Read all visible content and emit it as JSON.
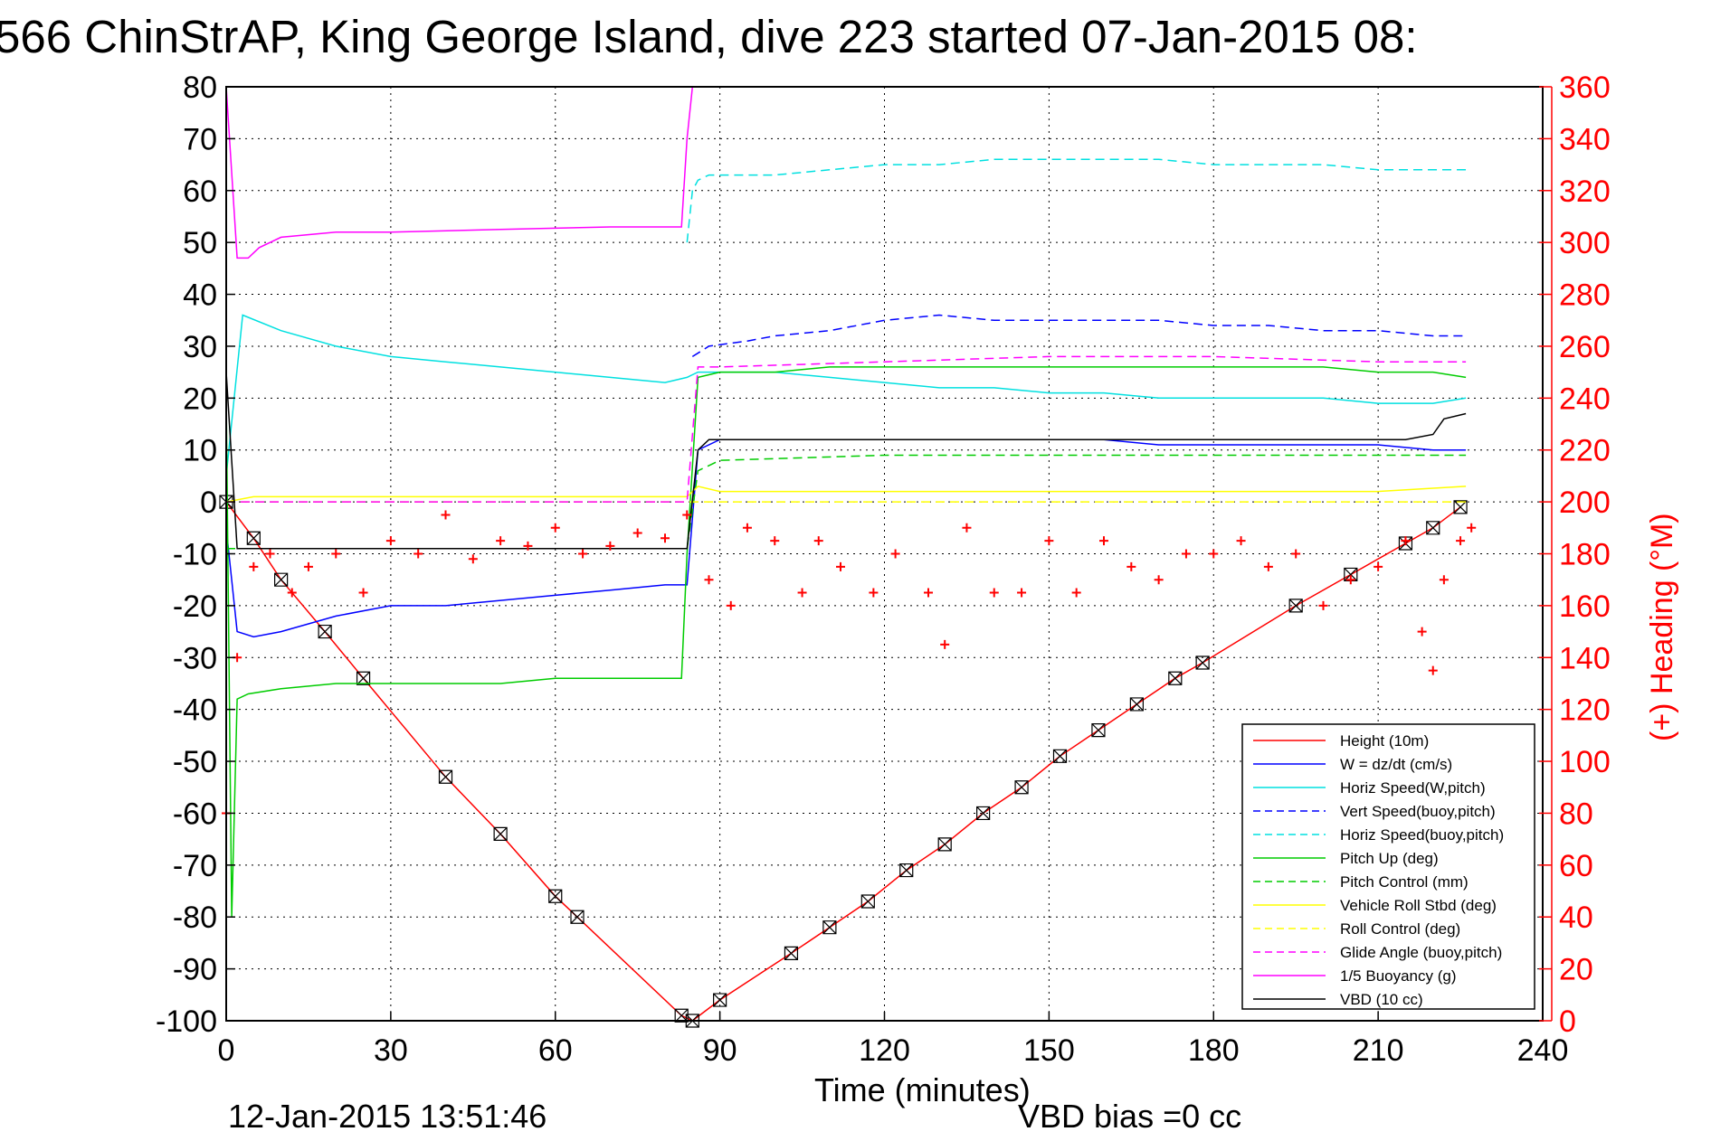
{
  "chart_data": {
    "type": "line",
    "title": "566 ChinStrAP, King George Island, dive 223 started 07-Jan-2015 08:",
    "xlabel": "Time (minutes)",
    "ylabel_right": "(+) Heading (°M)",
    "xlim": [
      0,
      240
    ],
    "ylim_left": [
      -100,
      80
    ],
    "ylim_right": [
      0,
      360
    ],
    "x_ticks": [
      "0",
      "30",
      "60",
      "90",
      "120",
      "150",
      "180",
      "210",
      "240"
    ],
    "y_ticks_left": [
      "80",
      "70",
      "60",
      "50",
      "40",
      "30",
      "20",
      "10",
      "0",
      "-10",
      "-20",
      "-30",
      "-40",
      "-50",
      "-60",
      "-70",
      "-80",
      "-90",
      "-100"
    ],
    "y_ticks_right": [
      "360",
      "340",
      "320",
      "300",
      "280",
      "260",
      "240",
      "220",
      "200",
      "180",
      "160",
      "140",
      "120",
      "100",
      "80",
      "60",
      "40",
      "20",
      "0"
    ],
    "grid": true,
    "legend_position": "bottom-right",
    "footer_date": "12-Jan-2015 13:51:46",
    "footer_vbd": "VBD bias =0 cc",
    "series": [
      {
        "name": "Height (10m)",
        "color": "#ff0000",
        "style": "solid",
        "axis": "left",
        "x": [
          0,
          5,
          10,
          18,
          25,
          40,
          50,
          60,
          64,
          83,
          85,
          90,
          103,
          110,
          117,
          124,
          131,
          138,
          145,
          152,
          159,
          166,
          173,
          178,
          195,
          205,
          215,
          220,
          225
        ],
        "y": [
          0,
          -7,
          -15,
          -25,
          -34,
          -53,
          -64,
          -76,
          -80,
          -99,
          -100,
          -96,
          -87,
          -82,
          -77,
          -71,
          -66,
          -60,
          -55,
          -49,
          -44,
          -39,
          -34,
          -31,
          -20,
          -14,
          -8,
          -5,
          -1
        ]
      },
      {
        "name": "W = dz/dt (cm/s)",
        "color": "#0000ff",
        "style": "solid",
        "axis": "left",
        "x": [
          0,
          2,
          5,
          10,
          20,
          30,
          40,
          50,
          60,
          70,
          80,
          84,
          86,
          90,
          100,
          110,
          120,
          130,
          140,
          150,
          160,
          170,
          180,
          190,
          200,
          210,
          220,
          226
        ],
        "y": [
          -5,
          -25,
          -26,
          -25,
          -22,
          -20,
          -20,
          -19,
          -18,
          -17,
          -16,
          -16,
          10,
          12,
          12,
          12,
          12,
          12,
          12,
          12,
          12,
          11,
          11,
          11,
          11,
          11,
          10,
          10
        ]
      },
      {
        "name": "Horiz Speed(W,pitch)",
        "color": "#00e0e0",
        "style": "solid",
        "axis": "left",
        "x": [
          0,
          3,
          10,
          20,
          30,
          40,
          50,
          60,
          70,
          80,
          84,
          86,
          90,
          100,
          110,
          120,
          130,
          140,
          150,
          160,
          170,
          180,
          190,
          200,
          210,
          220,
          226
        ],
        "y": [
          5,
          36,
          33,
          30,
          28,
          27,
          26,
          25,
          24,
          23,
          24,
          25,
          25,
          25,
          24,
          23,
          22,
          22,
          21,
          21,
          20,
          20,
          20,
          20,
          19,
          19,
          20
        ]
      },
      {
        "name": "Vert Speed(buoy,pitch)",
        "color": "#0000ff",
        "style": "dashed",
        "axis": "left",
        "x": [
          85,
          88,
          95,
          100,
          110,
          120,
          130,
          140,
          150,
          160,
          170,
          180,
          190,
          200,
          210,
          220,
          226
        ],
        "y": [
          28,
          30,
          31,
          32,
          33,
          35,
          36,
          35,
          35,
          35,
          35,
          34,
          34,
          33,
          33,
          32,
          32
        ]
      },
      {
        "name": "Horiz Speed(buoy,pitch)",
        "color": "#00e0e0",
        "style": "dashed",
        "axis": "left",
        "x": [
          84,
          85,
          86,
          88,
          100,
          110,
          120,
          130,
          140,
          150,
          160,
          170,
          180,
          190,
          200,
          210,
          220,
          226
        ],
        "y": [
          50,
          60,
          62,
          63,
          63,
          64,
          65,
          65,
          66,
          66,
          66,
          66,
          65,
          65,
          65,
          64,
          64,
          64
        ]
      },
      {
        "name": "Pitch Up (deg)",
        "color": "#00cc00",
        "style": "solid",
        "axis": "left",
        "x": [
          0,
          1,
          2,
          4,
          10,
          20,
          30,
          40,
          50,
          60,
          70,
          80,
          83,
          84,
          86,
          90,
          100,
          110,
          120,
          130,
          140,
          150,
          160,
          170,
          180,
          190,
          200,
          210,
          220,
          226
        ],
        "y": [
          20,
          -80,
          -38,
          -37,
          -36,
          -35,
          -35,
          -35,
          -35,
          -34,
          -34,
          -34,
          -34,
          -10,
          24,
          25,
          25,
          26,
          26,
          26,
          26,
          26,
          26,
          26,
          26,
          26,
          26,
          25,
          25,
          24
        ]
      },
      {
        "name": "Pitch Control (mm)",
        "color": "#00cc00",
        "style": "dashed",
        "axis": "left",
        "x": [
          0,
          84,
          86,
          90,
          120,
          150,
          180,
          210,
          226
        ],
        "y": [
          -9,
          -9,
          6,
          8,
          9,
          9,
          9,
          9,
          9
        ]
      },
      {
        "name": "Vehicle Roll Stbd (deg)",
        "color": "#ffff00",
        "style": "solid",
        "axis": "left",
        "x": [
          0,
          5,
          10,
          20,
          40,
          60,
          80,
          84,
          86,
          90,
          120,
          150,
          180,
          210,
          226
        ],
        "y": [
          0,
          1,
          1,
          1,
          1,
          1,
          1,
          1,
          3,
          2,
          2,
          2,
          2,
          2,
          3
        ]
      },
      {
        "name": "Roll Control (deg)",
        "color": "#ffff00",
        "style": "dashed",
        "axis": "left",
        "x": [
          0,
          226
        ],
        "y": [
          0,
          0
        ]
      },
      {
        "name": "Glide Angle (buoy,pitch)",
        "color": "#ff00ff",
        "style": "dashed",
        "axis": "left",
        "x": [
          0,
          84,
          86,
          90,
          120,
          150,
          180,
          210,
          226
        ],
        "y": [
          0,
          0,
          26,
          26,
          27,
          28,
          28,
          27,
          27
        ]
      },
      {
        "name": "1/5 Buoyancy (g)",
        "color": "#ff00ff",
        "style": "solid",
        "axis": "left",
        "x": [
          0,
          2,
          4,
          6,
          10,
          20,
          30,
          50,
          70,
          83,
          84,
          85
        ],
        "y": [
          80,
          47,
          47,
          49,
          51,
          52,
          52,
          52.5,
          53,
          53,
          70,
          80
        ]
      },
      {
        "name": "VBD (10 cc)",
        "color": "#000000",
        "style": "solid",
        "axis": "left",
        "x": [
          0,
          2,
          3,
          84,
          86,
          88,
          120,
          180,
          215,
          220,
          222,
          226
        ],
        "y": [
          25,
          -9,
          -9,
          -9,
          10,
          12,
          12,
          12,
          12,
          13,
          16,
          17
        ]
      },
      {
        "name": "Heading",
        "color": "#ff0000",
        "style": "plus",
        "axis": "right",
        "x": [
          0,
          2,
          5,
          8,
          12,
          15,
          20,
          25,
          30,
          35,
          40,
          45,
          50,
          55,
          60,
          65,
          70,
          75,
          80,
          84,
          88,
          92,
          95,
          100,
          105,
          108,
          112,
          118,
          122,
          128,
          131,
          135,
          140,
          145,
          150,
          155,
          160,
          165,
          170,
          175,
          180,
          185,
          190,
          195,
          200,
          205,
          210,
          215,
          218,
          220,
          222,
          225,
          227
        ],
        "y": [
          80,
          140,
          175,
          180,
          165,
          175,
          180,
          165,
          185,
          180,
          195,
          178,
          185,
          183,
          190,
          180,
          183,
          188,
          186,
          195,
          170,
          160,
          190,
          185,
          165,
          185,
          175,
          165,
          180,
          165,
          145,
          190,
          165,
          165,
          185,
          165,
          185,
          175,
          170,
          180,
          180,
          185,
          175,
          180,
          160,
          170,
          175,
          185,
          150,
          135,
          170,
          185,
          190
        ]
      }
    ]
  }
}
